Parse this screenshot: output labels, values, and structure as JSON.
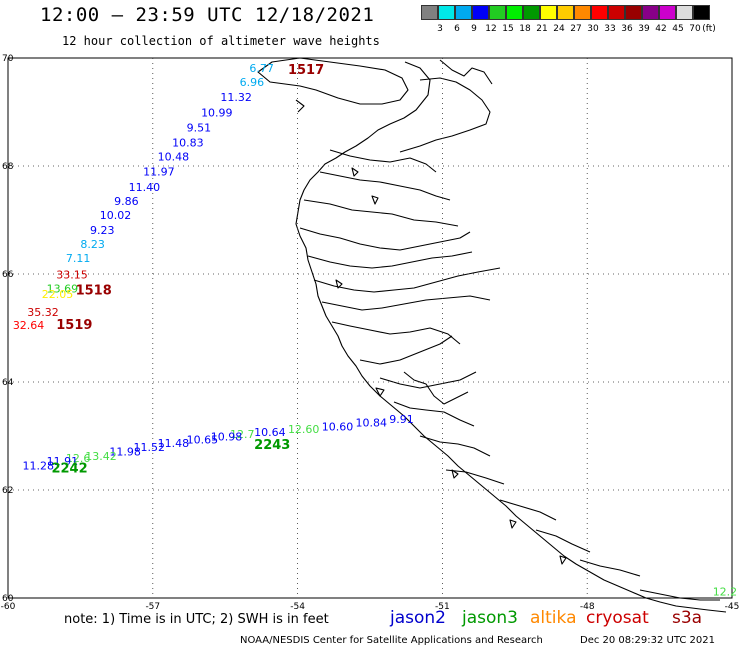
{
  "header": {
    "title": "12:00 — 23:59 UTC 12/18/2021",
    "subtitle": "12 hour collection of altimeter wave heights"
  },
  "legend": {
    "unit": "(ft)",
    "levels": [
      {
        "value": "",
        "color": "#808080"
      },
      {
        "value": "3",
        "color": "#00e8e8"
      },
      {
        "value": "6",
        "color": "#00aaf0"
      },
      {
        "value": "9",
        "color": "#0000f8"
      },
      {
        "value": "12",
        "color": "#22cc22"
      },
      {
        "value": "15",
        "color": "#00ee00"
      },
      {
        "value": "18",
        "color": "#009900"
      },
      {
        "value": "21",
        "color": "#ffff00"
      },
      {
        "value": "24",
        "color": "#ffcc00"
      },
      {
        "value": "27",
        "color": "#ff8800"
      },
      {
        "value": "30",
        "color": "#ff0000"
      },
      {
        "value": "33",
        "color": "#cc0000"
      },
      {
        "value": "36",
        "color": "#990000"
      },
      {
        "value": "39",
        "color": "#880088"
      },
      {
        "value": "42",
        "color": "#cc00cc"
      },
      {
        "value": "45",
        "color": "#dddddd"
      },
      {
        "value": "70",
        "color": "#000000"
      }
    ]
  },
  "axes": {
    "lon_min": -60,
    "lon_max": -45,
    "lat_min": 60,
    "lat_max": 70,
    "lon_ticks": [
      "-60",
      "-57",
      "-54",
      "-51",
      "-48",
      "-45"
    ],
    "lon_values": [
      -60,
      -57,
      -54,
      -51,
      -48,
      -45
    ],
    "lat_ticks": [
      "60",
      "62",
      "64",
      "66",
      "68",
      "70"
    ],
    "lat_values": [
      60,
      62,
      64,
      66,
      68,
      70
    ]
  },
  "wave_labels": [
    {
      "text": "6.77",
      "lon": -55.0,
      "lat": 69.74,
      "color": "#00aaf0"
    },
    {
      "text": "6.96",
      "lon": -55.2,
      "lat": 69.48,
      "color": "#00aaf0"
    },
    {
      "text": "11.32",
      "lon": -55.6,
      "lat": 69.2,
      "color": "#0000f8"
    },
    {
      "text": "10.99",
      "lon": -56.0,
      "lat": 68.92,
      "color": "#0000f8"
    },
    {
      "text": "9.51",
      "lon": -56.3,
      "lat": 68.64,
      "color": "#0000f8"
    },
    {
      "text": "10.83",
      "lon": -56.6,
      "lat": 68.36,
      "color": "#0000f8"
    },
    {
      "text": "10.48",
      "lon": -56.9,
      "lat": 68.1,
      "color": "#0000f8"
    },
    {
      "text": "11.97",
      "lon": -57.2,
      "lat": 67.82,
      "color": "#0000f8"
    },
    {
      "text": "11.40",
      "lon": -57.5,
      "lat": 67.54,
      "color": "#0000f8"
    },
    {
      "text": "9.86",
      "lon": -57.8,
      "lat": 67.28,
      "color": "#0000f8"
    },
    {
      "text": "10.02",
      "lon": -58.1,
      "lat": 67.02,
      "color": "#0000f8"
    },
    {
      "text": "9.23",
      "lon": -58.3,
      "lat": 66.74,
      "color": "#0000f8"
    },
    {
      "text": "8.23",
      "lon": -58.5,
      "lat": 66.48,
      "color": "#00aaf0"
    },
    {
      "text": "7.11",
      "lon": -58.8,
      "lat": 66.22,
      "color": "#00aaf0"
    },
    {
      "text": "33.15",
      "lon": -59.0,
      "lat": 65.92,
      "color": "#cc0000"
    },
    {
      "text": "13.69",
      "lon": -59.2,
      "lat": 65.66,
      "color": "#22cc22"
    },
    {
      "text": "22.05",
      "lon": -59.3,
      "lat": 65.56,
      "color": "#ffee00"
    },
    {
      "text": "35.32",
      "lon": -59.6,
      "lat": 65.22,
      "color": "#cc0000"
    },
    {
      "text": "32.64",
      "lon": -59.9,
      "lat": 64.98,
      "color": "#ff0000"
    },
    {
      "text": "9.91",
      "lon": -52.1,
      "lat": 63.24,
      "color": "#0000f8"
    },
    {
      "text": "10.84",
      "lon": -52.8,
      "lat": 63.18,
      "color": "#0000f8"
    },
    {
      "text": "10.60",
      "lon": -53.5,
      "lat": 63.1,
      "color": "#0000f8"
    },
    {
      "text": "12.60",
      "lon": -54.2,
      "lat": 63.06,
      "color": "#44dd44"
    },
    {
      "text": "10.64",
      "lon": -54.9,
      "lat": 63.0,
      "color": "#0000f8"
    },
    {
      "text": "12.7",
      "lon": -55.4,
      "lat": 62.96,
      "color": "#44dd44"
    },
    {
      "text": "10.98",
      "lon": -55.8,
      "lat": 62.92,
      "color": "#0000f8"
    },
    {
      "text": "10.65",
      "lon": -56.3,
      "lat": 62.86,
      "color": "#0000f8"
    },
    {
      "text": "11.48",
      "lon": -56.9,
      "lat": 62.8,
      "color": "#0000f8"
    },
    {
      "text": "11.52",
      "lon": -57.4,
      "lat": 62.72,
      "color": "#0000f8"
    },
    {
      "text": "11.98",
      "lon": -57.9,
      "lat": 62.64,
      "color": "#0000f8"
    },
    {
      "text": "13.42",
      "lon": -58.4,
      "lat": 62.56,
      "color": "#44dd44"
    },
    {
      "text": "12.6",
      "lon": -58.8,
      "lat": 62.52,
      "color": "#44dd44"
    },
    {
      "text": "11.91",
      "lon": -59.2,
      "lat": 62.46,
      "color": "#0000f8"
    },
    {
      "text": "11.28",
      "lon": -59.7,
      "lat": 62.38,
      "color": "#0000f8"
    },
    {
      "text": "12.2",
      "lon": -45.4,
      "lat": 60.05,
      "color": "#44dd44"
    }
  ],
  "pass_labels": [
    {
      "text": "1517",
      "lon": -54.2,
      "lat": 69.7,
      "color": "#990000"
    },
    {
      "text": "1518",
      "lon": -58.6,
      "lat": 65.62,
      "color": "#990000"
    },
    {
      "text": "1519",
      "lon": -59.0,
      "lat": 64.98,
      "color": "#990000"
    },
    {
      "text": "2243",
      "lon": -54.9,
      "lat": 62.76,
      "color": "#009900"
    },
    {
      "text": "2242",
      "lon": -59.1,
      "lat": 62.32,
      "color": "#009900"
    }
  ],
  "footer": {
    "note": "note:  1) Time is in UTC;  2) SWH is in feet",
    "satellites": [
      {
        "name": "jason2",
        "color": "#0000cc"
      },
      {
        "name": "jason3",
        "color": "#009900"
      },
      {
        "name": "altika",
        "color": "#ff8800"
      },
      {
        "name": "cryosat",
        "color": "#cc0000"
      },
      {
        "name": "s3a",
        "color": "#990000"
      }
    ],
    "credit": "NOAA/NESDIS Center for Satellite Applications and Research",
    "date": "Dec 20 08:29:32 UTC 2021"
  }
}
